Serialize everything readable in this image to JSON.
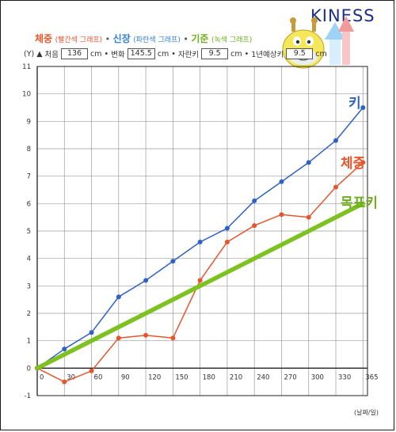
{
  "brand": "KINESS",
  "legend": {
    "weight": "체중",
    "weight_note": "(빨간색 그래프)",
    "height": "신장",
    "height_note": "(파란색 그래프)",
    "standard": "기준",
    "standard_note": "(녹색 그래프)",
    "sep": "•"
  },
  "info": {
    "y_unit": "(Y) ▲",
    "first_label": "처음",
    "first_value": "136",
    "change_label": "변화",
    "change_value": "145.5",
    "self_label": "자란키",
    "self_value": "9.5",
    "expected_label": "1년예상키",
    "expected_value": "9.5",
    "cm": "cm",
    "dot": "•"
  },
  "colors": {
    "height": "#2f62c4",
    "weight": "#e4572e",
    "standard": "#7dc220",
    "grid": "#9a9a9a",
    "axis": "#222222"
  },
  "chart_data": {
    "type": "line",
    "title": "",
    "xlabel": "(날짜/일)",
    "ylabel": "",
    "xlim": [
      0,
      365
    ],
    "ylim": [
      -1,
      11
    ],
    "x_ticks": [
      "0",
      "30",
      "60",
      "90",
      "120",
      "150",
      "180",
      "210",
      "240",
      "270",
      "300",
      "330",
      "365"
    ],
    "y_ticks": [
      "11",
      "10",
      "9",
      "8",
      "7",
      "6",
      "5",
      "4",
      "3",
      "2",
      "1",
      "0",
      "-1"
    ],
    "grid": true,
    "series": [
      {
        "name": "키",
        "color": "#2f62c4",
        "points": [
          [
            0,
            0
          ],
          [
            30,
            0.7
          ],
          [
            60,
            1.3
          ],
          [
            90,
            2.6
          ],
          [
            120,
            3.2
          ],
          [
            150,
            3.9
          ],
          [
            180,
            4.6
          ],
          [
            210,
            5.1
          ],
          [
            240,
            6.1
          ],
          [
            270,
            6.8
          ],
          [
            300,
            7.5
          ],
          [
            330,
            8.3
          ],
          [
            360,
            9.5
          ]
        ]
      },
      {
        "name": "체중",
        "color": "#e4572e",
        "points": [
          [
            0,
            0
          ],
          [
            30,
            -0.5
          ],
          [
            60,
            -0.1
          ],
          [
            90,
            1.1
          ],
          [
            120,
            1.2
          ],
          [
            150,
            1.1
          ],
          [
            180,
            3.2
          ],
          [
            210,
            4.6
          ],
          [
            240,
            5.2
          ],
          [
            270,
            5.6
          ],
          [
            300,
            5.5
          ],
          [
            330,
            6.6
          ],
          [
            360,
            7.5
          ]
        ]
      },
      {
        "name": "목표키",
        "color": "#7dc220",
        "points": [
          [
            0,
            0
          ],
          [
            360,
            6.0
          ]
        ]
      }
    ]
  }
}
